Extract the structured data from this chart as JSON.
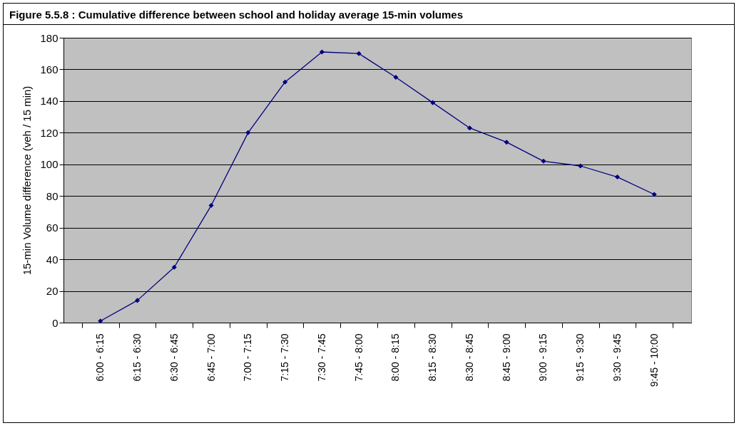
{
  "chart_data": {
    "type": "line",
    "title": "Figure 5.5.8 : Cumulative difference between school and holiday average 15-min volumes",
    "ylabel": "15-min Volume difference (veh / 15 min)",
    "categories": [
      "6:00 - 6:15",
      "6:15 - 6:30",
      "6:30 - 6:45",
      "6:45 - 7:00",
      "7:00 - 7:15",
      "7:15 - 7:30",
      "7:30 - 7:45",
      "7:45 - 8:00",
      "8:00 - 8:15",
      "8:15 - 8:30",
      "8:30 - 8:45",
      "8:45 - 9:00",
      "9:00 - 9:15",
      "9:15 - 9:30",
      "9:30 - 9:45",
      "9:45 - 10:00"
    ],
    "series": [
      {
        "color": "#000080",
        "values": [
          1,
          14,
          35,
          74,
          120,
          152,
          171,
          170,
          155,
          139,
          123,
          114,
          102,
          99,
          92,
          81
        ]
      }
    ],
    "ylim": [
      0,
      180
    ],
    "yticks": [
      0,
      20,
      40,
      60,
      80,
      100,
      120,
      140,
      160,
      180
    ],
    "grid": "y",
    "marker": "diamond",
    "line_style": "solid",
    "legend": false
  }
}
